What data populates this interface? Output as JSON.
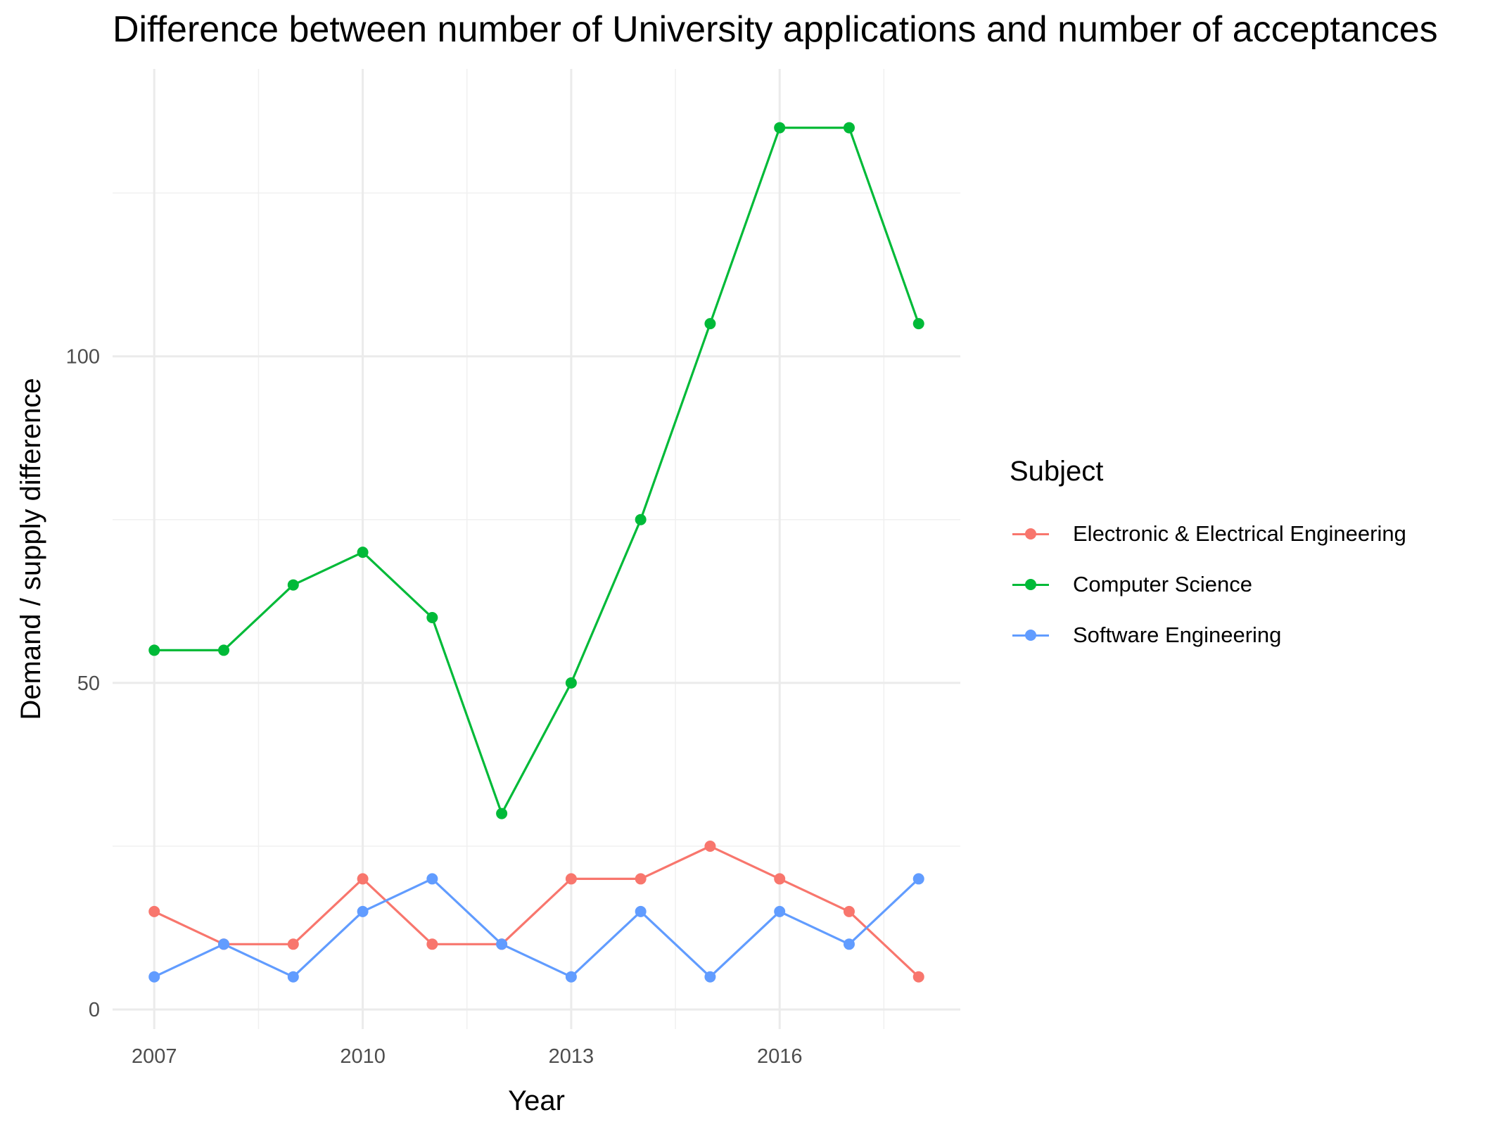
{
  "chart_data": {
    "type": "line",
    "title": "Difference between number of University applications and number of acceptances",
    "xlabel": "Year",
    "ylabel": "Demand / supply difference",
    "x": [
      2007,
      2008,
      2009,
      2010,
      2011,
      2012,
      2013,
      2014,
      2015,
      2016,
      2017,
      2018
    ],
    "xlim": [
      2006.4,
      2018.6
    ],
    "ylim": [
      -3,
      144
    ],
    "x_ticks": [
      2007,
      2010,
      2013,
      2016
    ],
    "y_ticks": [
      0,
      50,
      100
    ],
    "x_tick_labels": [
      "2007",
      "2010",
      "2013",
      "2016"
    ],
    "y_tick_labels": [
      "0",
      "50",
      "100"
    ],
    "grid": true,
    "legend": {
      "title": "Subject",
      "position": "right"
    },
    "series": [
      {
        "name": "Electronic & Electrical Engineering",
        "color": "#F8766D",
        "values": [
          15,
          10,
          10,
          20,
          10,
          10,
          20,
          20,
          25,
          20,
          15,
          5
        ]
      },
      {
        "name": "Computer Science",
        "color": "#00BA38",
        "values": [
          55,
          55,
          65,
          70,
          60,
          30,
          50,
          75,
          105,
          135,
          135,
          105
        ]
      },
      {
        "name": "Software Engineering",
        "color": "#619CFF",
        "values": [
          5,
          10,
          5,
          15,
          20,
          10,
          5,
          15,
          5,
          15,
          10,
          20
        ]
      }
    ]
  }
}
